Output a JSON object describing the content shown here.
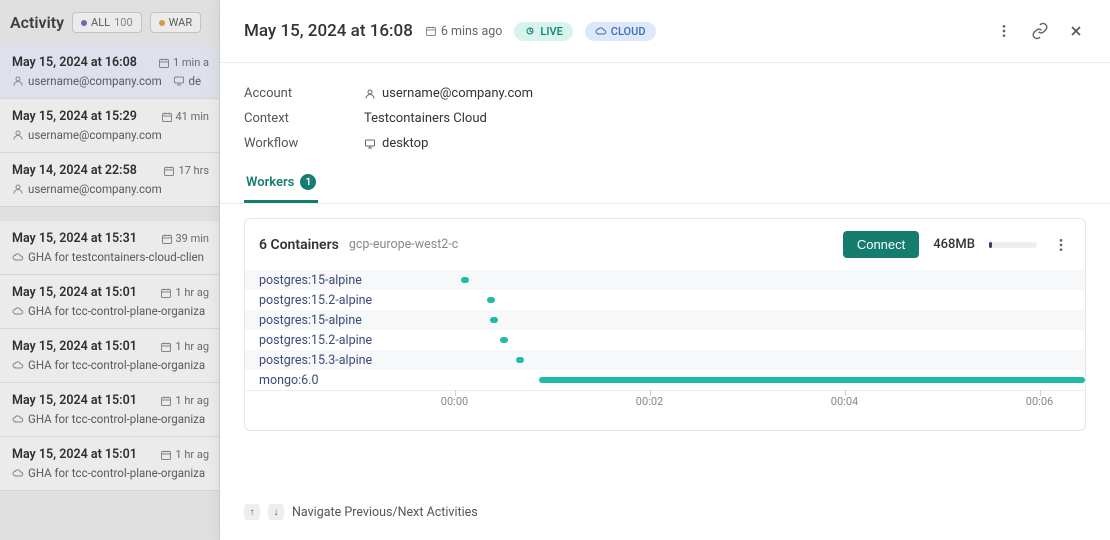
{
  "colors": {
    "accent": "#147d6f",
    "cloud_badge_bg": "#dde8fb",
    "cloud_badge_fg": "#3b6db8",
    "live_badge_bg": "#d6f3ee",
    "live_badge_fg": "#147d6f",
    "bar_color": "#1fbba6",
    "label_color": "#3b4a7a",
    "memory_fill": "#36416b"
  },
  "sidebar": {
    "title": "Activity",
    "filters": [
      {
        "label": "ALL",
        "count": "100",
        "dot": "#6468b5"
      },
      {
        "label": "WAR",
        "count": "",
        "dot": "#e8a23b"
      }
    ]
  },
  "activities": [
    {
      "ts": "May 15, 2024 at 16:08",
      "ago": "1 min a",
      "sub_icon": "user",
      "sub": "username@company.com",
      "tail_icon": "desk",
      "tail": "de",
      "selected": true
    },
    {
      "ts": "May 15, 2024 at 15:29",
      "ago": "41 min",
      "sub_icon": "user",
      "sub": "username@company.com",
      "tail_icon": "",
      "tail": ""
    },
    {
      "ts": "May 14, 2024 at 22:58",
      "ago": "17 hrs",
      "sub_icon": "user",
      "sub": "username@company.com",
      "tail_icon": "",
      "tail": ""
    },
    {
      "gap": true
    },
    {
      "ts": "May 15, 2024 at 15:31",
      "ago": "39 min",
      "sub_icon": "cloud",
      "sub": "GHA for testcontainers-cloud-clien",
      "tail_icon": "",
      "tail": ""
    },
    {
      "ts": "May 15, 2024 at 15:01",
      "ago": "1 hr ag",
      "sub_icon": "cloud",
      "sub": "GHA for tcc-control-plane-organiza",
      "tail_icon": "",
      "tail": ""
    },
    {
      "ts": "May 15, 2024 at 15:01",
      "ago": "1 hr ag",
      "sub_icon": "cloud",
      "sub": "GHA for tcc-control-plane-organiza",
      "tail_icon": "",
      "tail": ""
    },
    {
      "ts": "May 15, 2024 at 15:01",
      "ago": "1 hr ag",
      "sub_icon": "cloud",
      "sub": "GHA for tcc-control-plane-organiza",
      "tail_icon": "",
      "tail": ""
    },
    {
      "ts": "May 15, 2024 at 15:01",
      "ago": "1 hr ag",
      "sub_icon": "cloud",
      "sub": "GHA for tcc-control-plane-organiza",
      "tail_icon": "",
      "tail": ""
    }
  ],
  "detail": {
    "title": "May 15, 2024 at 16:08",
    "ago": "6 mins ago",
    "live_label": "LIVE",
    "cloud_label": "CLOUD",
    "meta": [
      {
        "label": "Account",
        "icon": "user",
        "value": "username@company.com"
      },
      {
        "label": "Context",
        "icon": "",
        "value": "Testcontainers Cloud"
      },
      {
        "label": "Workflow",
        "icon": "desk",
        "value": "desktop"
      }
    ],
    "tab_label": "Workers",
    "tab_count": "1"
  },
  "panel": {
    "count_label": "6 Containers",
    "region": "gcp-europe-west2-c",
    "connect_label": "Connect",
    "memory_label": "468MB",
    "memory_fill_pct": 6
  },
  "timeline": {
    "x_ticks": [
      {
        "label": "00:00",
        "pos": 3
      },
      {
        "label": "00:02",
        "pos": 33
      },
      {
        "label": "00:04",
        "pos": 63
      },
      {
        "label": "00:06",
        "pos": 93
      }
    ],
    "rows": [
      {
        "label": "postgres:15-alpine",
        "start": 4,
        "width": 1.2,
        "color": "#1fbba6"
      },
      {
        "label": "postgres:15.2-alpine",
        "start": 8,
        "width": 1.2,
        "color": "#1fbba6"
      },
      {
        "label": "postgres:15-alpine",
        "start": 8.5,
        "width": 1.2,
        "color": "#1fbba6"
      },
      {
        "label": "postgres:15.2-alpine",
        "start": 10,
        "width": 1.2,
        "color": "#1fbba6"
      },
      {
        "label": "postgres:15.3-alpine",
        "start": 12.5,
        "width": 1.2,
        "color": "#1fbba6"
      },
      {
        "label": "mongo:6.0",
        "start": 16,
        "width": 84,
        "color": "#1fbba6"
      }
    ]
  },
  "nav_hint": "Navigate Previous/Next Activities"
}
